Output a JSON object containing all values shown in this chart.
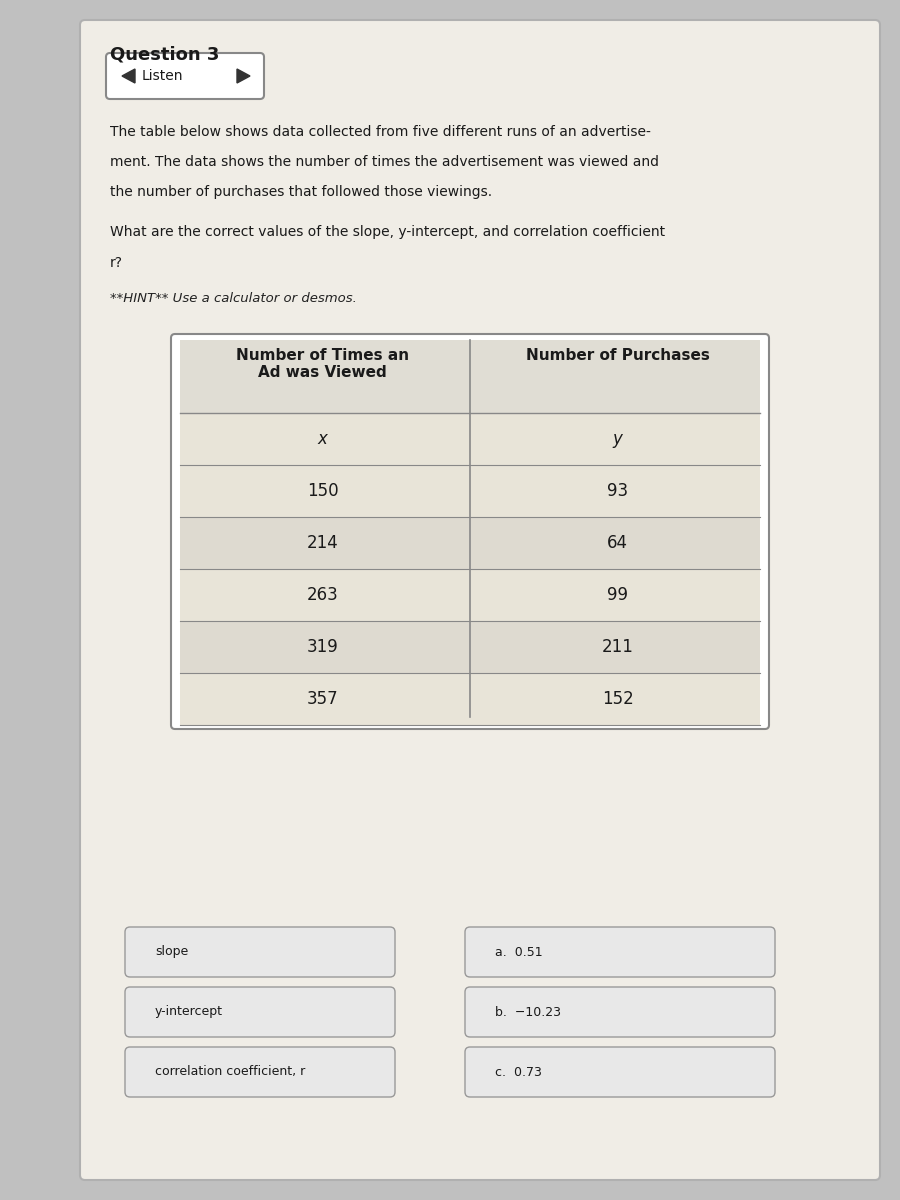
{
  "title": "Question 3",
  "paragraph1": "The table below shows data collected from five different runs of an advertise-",
  "paragraph2": "ment. The data shows the number of times the advertisement was viewed and",
  "paragraph3": "the number of purchases that followed those viewings.",
  "question": "What are the correct values of the slope, y-intercept, and correlation coefficient",
  "question2": "r?",
  "hint": "**HINT** Use a calculator or desmos.",
  "col1_header": "Number of Times an\nAd was Viewed",
  "col2_header": "Number of Purchases",
  "col1_sub": "x",
  "col2_sub": "y",
  "x_values": [
    150,
    214,
    263,
    319,
    357
  ],
  "y_values": [
    93,
    64,
    99,
    211,
    152
  ],
  "answer_labels": [
    "slope",
    "y-intercept",
    "correlation coefficient, r"
  ],
  "answer_choices": [
    "a.  0.51",
    "b.  −10.23",
    "c.  0.73"
  ],
  "bg_color": "#c0c0c0",
  "content_bg": "#f0ede6",
  "table_bg_stripe1": "#e8e4d8",
  "table_bg_stripe2": "#dedad0",
  "table_header_bg": "#e0ddd4",
  "answer_box_bg": "#e8e8e8",
  "answer_box_border": "#999999",
  "text_color": "#1a1a1a",
  "hint_color": "#222222"
}
